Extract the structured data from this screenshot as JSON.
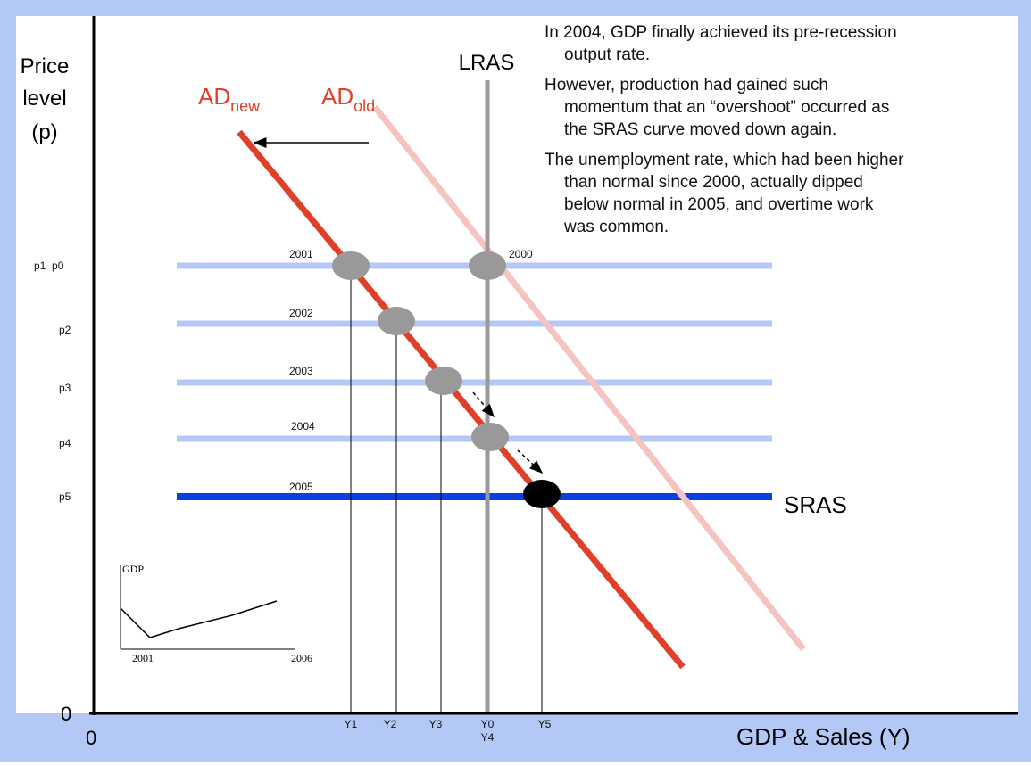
{
  "axes": {
    "y_label": [
      "Price",
      "level",
      "(p)"
    ],
    "x_label": "GDP & Sales (Y)",
    "origin_y": "0",
    "origin_x": "0"
  },
  "curves": {
    "lras": "LRAS",
    "sras": "SRAS",
    "ad_new": {
      "base": "AD",
      "sub": "new"
    },
    "ad_old": {
      "base": "AD",
      "sub": "old"
    }
  },
  "price_levels": [
    "p1  p0",
    "p2",
    "p3",
    "p4",
    "p5"
  ],
  "years": [
    "2000",
    "2001",
    "2002",
    "2003",
    "2004",
    "2005"
  ],
  "outputs": [
    "Y1",
    "Y2",
    "Y3",
    "Y0",
    "Y4",
    "Y5"
  ],
  "notes": [
    [
      "In 2004, GDP finally achieved its pre-recession",
      "output rate."
    ],
    [
      "However, production had gained such",
      "momentum that an “overshoot” occurred as",
      "the SRAS curve moved down again."
    ],
    [
      "The unemployment rate, which had been higher",
      "than normal since 2000, actually dipped",
      "below normal in 2005, and overtime work",
      "was common."
    ]
  ],
  "inset": {
    "y_label": "GDP",
    "x_start": "2001",
    "x_end": "2006"
  }
}
